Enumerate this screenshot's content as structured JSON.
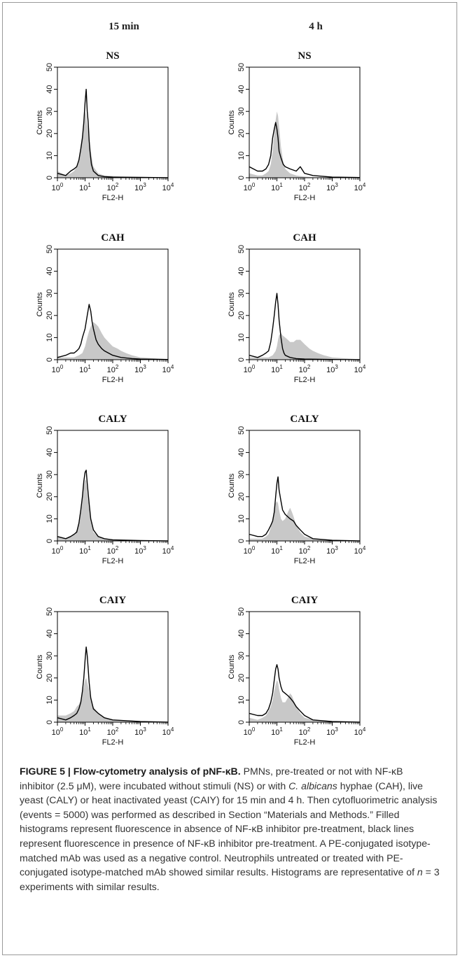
{
  "column_headers": [
    "15 min",
    "4 h"
  ],
  "axes": {
    "ylabel": "Counts",
    "xlabel": "FL2-H",
    "y_ticks": [
      "0",
      "10",
      "20",
      "30",
      "40",
      "50"
    ],
    "x_tick_base": "10",
    "x_tick_exponents": [
      "0",
      "1",
      "2",
      "3",
      "4"
    ]
  },
  "colors": {
    "filled": "#c8c8c8",
    "line": "#000000"
  },
  "chart_data": [
    {
      "type": "area",
      "title": "NS",
      "column": "15 min",
      "row": 0,
      "xscale": "log",
      "xlim": [
        1,
        10000
      ],
      "ylim": [
        0,
        50
      ],
      "series": [
        {
          "style": "filled",
          "x": [
            1,
            2,
            3,
            4,
            5,
            6,
            7,
            8,
            9,
            10,
            11,
            12,
            14,
            17,
            20,
            30,
            50,
            100,
            200,
            1000,
            10000
          ],
          "y": [
            3,
            1,
            2,
            3,
            5,
            9,
            15,
            20,
            26,
            30,
            28,
            24,
            18,
            10,
            5,
            2,
            1,
            0.8,
            0.5,
            0.3,
            0.2
          ]
        },
        {
          "style": "line",
          "x": [
            1,
            2,
            3,
            4,
            5,
            6,
            7,
            8,
            9,
            10,
            11,
            12,
            13,
            14,
            15,
            17,
            20,
            30,
            50,
            100,
            1000,
            10000
          ],
          "y": [
            2,
            1,
            3,
            4,
            5,
            8,
            13,
            18,
            25,
            34,
            40,
            30,
            25,
            17,
            12,
            6,
            3,
            1,
            0.5,
            0.3,
            0.2,
            0
          ]
        }
      ]
    },
    {
      "type": "area",
      "title": "NS",
      "column": "4 h",
      "row": 0,
      "xscale": "log",
      "xlim": [
        1,
        10000
      ],
      "ylim": [
        0,
        50
      ],
      "series": [
        {
          "style": "filled",
          "x": [
            1,
            2,
            3,
            4,
            5,
            6,
            7,
            8,
            9,
            10,
            11,
            12,
            14,
            17,
            20,
            30,
            50,
            100,
            200,
            1000,
            10000
          ],
          "y": [
            2,
            1,
            1,
            2,
            3,
            6,
            12,
            20,
            26,
            30,
            28,
            23,
            14,
            7,
            4,
            2,
            1,
            0.5,
            0.3,
            0.2,
            0.1
          ]
        },
        {
          "style": "line",
          "x": [
            1,
            2,
            3,
            4,
            5,
            6,
            7,
            8,
            9,
            10,
            11,
            12,
            14,
            17,
            20,
            30,
            50,
            70,
            100,
            200,
            1000,
            10000
          ],
          "y": [
            5,
            3,
            3,
            4,
            6,
            10,
            18,
            22,
            25,
            22,
            18,
            12,
            9,
            6,
            5,
            4,
            3,
            5,
            2,
            1,
            0.3,
            0.1
          ]
        }
      ]
    },
    {
      "type": "area",
      "title": "CAH",
      "column": "15 min",
      "row": 1,
      "xscale": "log",
      "xlim": [
        1,
        10000
      ],
      "ylim": [
        0,
        50
      ],
      "series": [
        {
          "style": "filled",
          "x": [
            1,
            2,
            3,
            4,
            6,
            8,
            10,
            12,
            14,
            16,
            18,
            20,
            25,
            30,
            40,
            50,
            70,
            100,
            150,
            200,
            300,
            500,
            1000,
            10000
          ],
          "y": [
            1,
            1,
            1,
            1,
            2,
            3,
            6,
            10,
            13,
            15,
            16,
            17,
            16,
            15,
            12,
            10,
            8,
            6,
            5,
            4,
            3,
            2,
            1,
            0.2
          ]
        },
        {
          "style": "line",
          "x": [
            1,
            2,
            3,
            4,
            5,
            6,
            7,
            8,
            10,
            12,
            14,
            16,
            18,
            20,
            25,
            30,
            40,
            50,
            70,
            100,
            200,
            500,
            1000,
            10000
          ],
          "y": [
            1,
            2,
            3,
            3,
            4,
            5,
            7,
            10,
            14,
            20,
            25,
            22,
            17,
            14,
            9,
            7,
            5,
            4,
            3,
            2,
            1,
            0.5,
            0.3,
            0.1
          ]
        }
      ]
    },
    {
      "type": "area",
      "title": "CAH",
      "column": "4 h",
      "row": 1,
      "xscale": "log",
      "xlim": [
        1,
        10000
      ],
      "ylim": [
        0,
        50
      ],
      "series": [
        {
          "style": "filled",
          "x": [
            1,
            3,
            5,
            7,
            8,
            9,
            10,
            11,
            12,
            14,
            16,
            20,
            25,
            30,
            40,
            50,
            70,
            100,
            150,
            200,
            300,
            500,
            1000,
            10000
          ],
          "y": [
            1,
            1,
            1,
            2,
            3,
            4,
            6,
            9,
            11,
            12,
            11,
            10,
            9,
            8,
            8,
            9,
            9,
            7,
            5,
            4,
            3,
            2,
            1,
            0.2
          ]
        },
        {
          "style": "line",
          "x": [
            1,
            2,
            3,
            4,
            5,
            6,
            7,
            8,
            9,
            10,
            11,
            12,
            14,
            16,
            18,
            20,
            30,
            50,
            100,
            1000,
            10000
          ],
          "y": [
            2,
            1,
            2,
            3,
            4,
            8,
            14,
            20,
            26,
            30,
            25,
            18,
            10,
            5,
            3,
            2,
            1,
            0.5,
            0.3,
            0.1,
            0
          ]
        }
      ]
    },
    {
      "type": "area",
      "title": "CALY",
      "column": "15 min",
      "row": 2,
      "xscale": "log",
      "xlim": [
        1,
        10000
      ],
      "ylim": [
        0,
        50
      ],
      "series": [
        {
          "style": "filled",
          "x": [
            1,
            2,
            3,
            4,
            5,
            6,
            7,
            8,
            9,
            10,
            11,
            12,
            14,
            16,
            20,
            30,
            50,
            100,
            1000,
            10000
          ],
          "y": [
            2,
            1,
            2,
            3,
            5,
            9,
            15,
            20,
            25,
            28,
            27,
            22,
            15,
            9,
            4,
            2,
            1,
            0.5,
            0.2,
            0.1
          ]
        },
        {
          "style": "line",
          "x": [
            1,
            2,
            3,
            4,
            5,
            6,
            7,
            8,
            9,
            10,
            11,
            12,
            14,
            16,
            20,
            30,
            50,
            100,
            1000,
            10000
          ],
          "y": [
            2,
            1,
            2,
            3,
            4,
            8,
            14,
            20,
            27,
            31,
            32,
            26,
            17,
            10,
            5,
            2,
            1,
            0.5,
            0.2,
            0
          ]
        }
      ]
    },
    {
      "type": "area",
      "title": "CALY",
      "column": "4 h",
      "row": 2,
      "xscale": "log",
      "xlim": [
        1,
        10000
      ],
      "ylim": [
        0,
        50
      ],
      "series": [
        {
          "style": "filled",
          "x": [
            1,
            2,
            3,
            4,
            5,
            6,
            7,
            8,
            9,
            10,
            11,
            12,
            14,
            16,
            20,
            25,
            30,
            35,
            40,
            50,
            70,
            100,
            200,
            1000,
            10000
          ],
          "y": [
            1,
            1,
            1,
            2,
            3,
            6,
            10,
            14,
            17,
            18,
            17,
            14,
            10,
            9,
            10,
            13,
            15,
            13,
            11,
            7,
            4,
            2,
            1,
            0.3,
            0.1
          ]
        },
        {
          "style": "line",
          "x": [
            1,
            2,
            3,
            4,
            5,
            6,
            7,
            8,
            9,
            10,
            11,
            12,
            14,
            16,
            20,
            30,
            40,
            50,
            70,
            100,
            200,
            1000,
            10000
          ],
          "y": [
            3,
            2,
            2,
            3,
            5,
            7,
            9,
            13,
            20,
            26,
            29,
            23,
            18,
            14,
            12,
            10,
            9,
            7,
            5,
            3,
            1,
            0.3,
            0
          ]
        }
      ]
    },
    {
      "type": "area",
      "title": "CAIY",
      "column": "15 min",
      "row": 3,
      "xscale": "log",
      "xlim": [
        1,
        10000
      ],
      "ylim": [
        0,
        50
      ],
      "series": [
        {
          "style": "filled",
          "x": [
            1,
            2,
            3,
            4,
            5,
            6,
            7,
            8,
            9,
            10,
            11,
            12,
            14,
            16,
            20,
            30,
            50,
            100,
            200,
            1000,
            10000
          ],
          "y": [
            3,
            3,
            4,
            5,
            7,
            8,
            10,
            13,
            16,
            19,
            20,
            18,
            14,
            10,
            7,
            4,
            2,
            1,
            0.5,
            0.2,
            0.1
          ]
        },
        {
          "style": "line",
          "x": [
            1,
            2,
            3,
            4,
            5,
            6,
            7,
            8,
            9,
            10,
            11,
            12,
            13,
            14,
            16,
            20,
            30,
            50,
            100,
            1000,
            10000
          ],
          "y": [
            2,
            1,
            2,
            3,
            4,
            6,
            9,
            14,
            20,
            28,
            34,
            30,
            24,
            18,
            11,
            6,
            4,
            2,
            1,
            0.3,
            0
          ]
        }
      ]
    },
    {
      "type": "area",
      "title": "CAIY",
      "column": "4 h",
      "row": 3,
      "xscale": "log",
      "xlim": [
        1,
        10000
      ],
      "ylim": [
        0,
        50
      ],
      "series": [
        {
          "style": "filled",
          "x": [
            1,
            2,
            3,
            4,
            5,
            6,
            7,
            8,
            9,
            10,
            11,
            12,
            14,
            16,
            20,
            25,
            30,
            35,
            40,
            50,
            70,
            100,
            200,
            1000,
            10000
          ],
          "y": [
            2,
            1,
            2,
            3,
            5,
            7,
            10,
            14,
            17,
            19,
            18,
            15,
            11,
            9,
            9,
            11,
            13,
            12,
            10,
            7,
            4,
            2,
            1,
            0.3,
            0.1
          ]
        },
        {
          "style": "line",
          "x": [
            1,
            2,
            3,
            4,
            5,
            6,
            7,
            8,
            9,
            10,
            11,
            12,
            14,
            16,
            20,
            25,
            30,
            40,
            50,
            70,
            100,
            200,
            1000,
            10000
          ],
          "y": [
            4,
            3,
            3,
            4,
            6,
            9,
            13,
            19,
            24,
            26,
            24,
            20,
            16,
            14,
            13,
            12,
            11,
            9,
            7,
            5,
            3,
            1,
            0.3,
            0
          ]
        }
      ]
    }
  ],
  "caption": {
    "label": "FIGURE 5 | Flow-cytometry analysis of pNF-κB.",
    "text_1": " PMNs, pre-treated or not with NF-κB inhibitor (2.5 μM), were incubated without stimuli (NS) or with ",
    "species": "C. albicans",
    "text_2": " hyphae (CAH), live yeast (CALY) or heat inactivated yeast (CAIY) for 15 min and 4 h. Then cytofluorimetric analysis (events = 5000) was performed as described in Section “Materials and Methods.” Filled histograms represent fluorescence in absence of NF-κB inhibitor pre-treatment, black lines represent fluorescence in presence of NF-κB inhibitor pre-treatment. A PE-conjugated isotype-matched mAb was used as a negative control. Neutrophils untreated or treated with PE-conjugated isotype-matched mAb showed similar results. Histograms are representative of ",
    "n_var": "n",
    "text_3": " = 3 experiments with similar results."
  }
}
